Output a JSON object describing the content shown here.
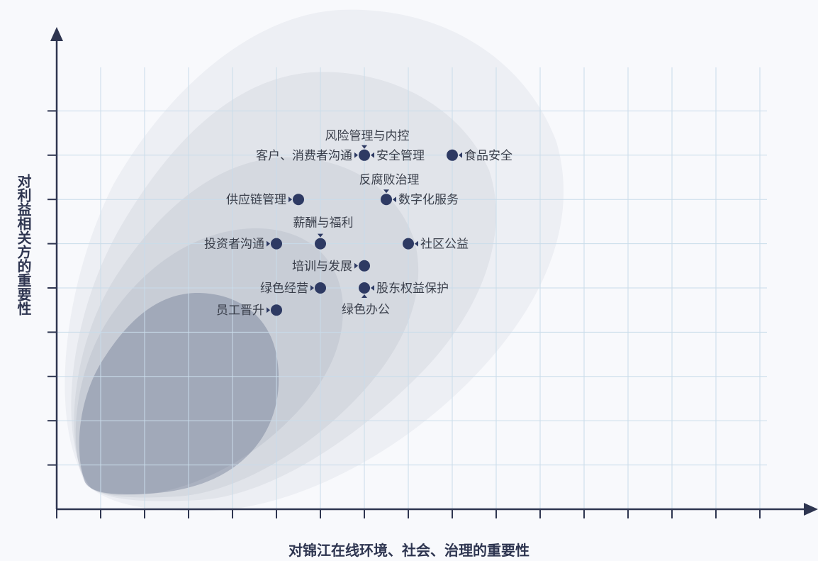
{
  "chart_data": {
    "type": "scatter",
    "title": "",
    "xlabel": "对锦江在线环境、社会、治理的重要性",
    "ylabel": "对利益相关方的重要性",
    "xlim": [
      0,
      17
    ],
    "ylim": [
      0,
      10
    ],
    "grid": true,
    "points": [
      {
        "label": "风险管理与内控",
        "x": 7.0,
        "y": 8.0
      },
      {
        "label": "客户、消费者沟通",
        "x": 7.0,
        "y": 8.0
      },
      {
        "label": "安全管理",
        "x": 7.0,
        "y": 8.0
      },
      {
        "label": "食品安全",
        "x": 9.0,
        "y": 8.0
      },
      {
        "label": "反腐败治理",
        "x": 7.5,
        "y": 7.0
      },
      {
        "label": "数字化服务",
        "x": 7.5,
        "y": 7.0
      },
      {
        "label": "供应链管理",
        "x": 5.5,
        "y": 7.0
      },
      {
        "label": "薪酬与福利",
        "x": 6.0,
        "y": 6.0
      },
      {
        "label": "投资者沟通",
        "x": 5.0,
        "y": 6.0
      },
      {
        "label": "社区公益",
        "x": 8.0,
        "y": 6.0
      },
      {
        "label": "培训与发展",
        "x": 7.0,
        "y": 5.5
      },
      {
        "label": "绿色经营",
        "x": 6.0,
        "y": 5.0
      },
      {
        "label": "股东权益保护",
        "x": 7.0,
        "y": 5.0
      },
      {
        "label": "绿色办公",
        "x": 7.0,
        "y": 5.0
      },
      {
        "label": "员工晋升",
        "x": 5.0,
        "y": 4.5
      }
    ]
  },
  "colors": {
    "axis": "#2e3550",
    "grid": "#c9dcea",
    "marker": "#2e3a63",
    "label": "#3a3f4b",
    "blob": "#4a5578"
  }
}
